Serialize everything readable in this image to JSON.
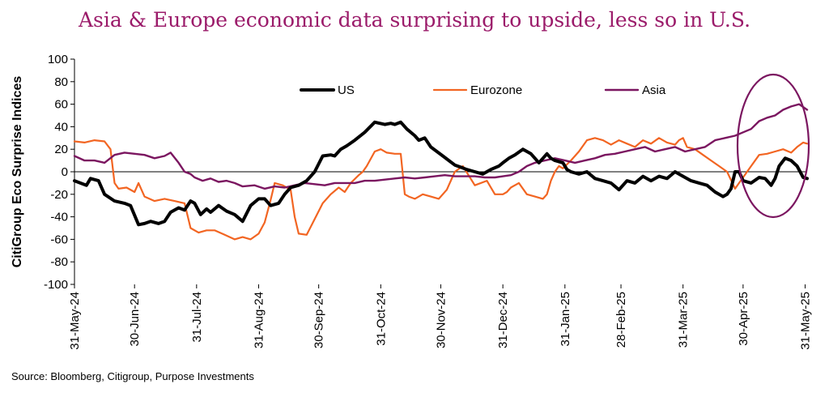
{
  "chart_data": {
    "type": "line",
    "title": "Asia & Europe economic data surprising to upside, less so in U.S.",
    "xlabel": "",
    "ylabel": "CitiGroup Eco Surprise Indices",
    "ylim": [
      -100,
      100
    ],
    "yticks": [
      -100,
      -80,
      -60,
      -40,
      -20,
      0,
      20,
      40,
      60,
      80,
      100
    ],
    "xlim": [
      0,
      366
    ],
    "xtick_labels": [
      "31-May-24",
      "30-Jun-24",
      "31-Jul-24",
      "31-Aug-24",
      "30-Sep-24",
      "31-Oct-24",
      "30-Nov-24",
      "31-Dec-24",
      "31-Jan-25",
      "28-Feb-25",
      "31-Mar-25",
      "30-Apr-25",
      "31-May-25"
    ],
    "xtick_positions": [
      0,
      30,
      61,
      92,
      122,
      153,
      183,
      214,
      245,
      273,
      304,
      334,
      365
    ],
    "series": [
      {
        "name": "US",
        "color": "#000000",
        "x": [
          0,
          6,
          8,
          12,
          15,
          20,
          25,
          28,
          32,
          35,
          38,
          42,
          45,
          48,
          52,
          55,
          58,
          60,
          63,
          66,
          68,
          72,
          76,
          80,
          84,
          88,
          92,
          95,
          98,
          102,
          105,
          108,
          112,
          116,
          120,
          124,
          128,
          130,
          133,
          136,
          140,
          145,
          150,
          155,
          158,
          160,
          163,
          166,
          170,
          172,
          175,
          178,
          181,
          184,
          187,
          190,
          193,
          196,
          200,
          204,
          208,
          212,
          214,
          217,
          220,
          224,
          228,
          232,
          236,
          238,
          240,
          244,
          246,
          248,
          252,
          256,
          260,
          264,
          268,
          272,
          276,
          280,
          284,
          288,
          292,
          296,
          300,
          304,
          308,
          312,
          316,
          320,
          324,
          326,
          328,
          330,
          332,
          334,
          338,
          342,
          345,
          348,
          350,
          352,
          355,
          358,
          361,
          364,
          366
        ],
        "y": [
          -8,
          -12,
          -6,
          -8,
          -20,
          -26,
          -28,
          -30,
          -47,
          -46,
          -44,
          -46,
          -44,
          -36,
          -32,
          -34,
          -26,
          -28,
          -38,
          -33,
          -36,
          -30,
          -35,
          -38,
          -44,
          -30,
          -24,
          -24,
          -30,
          -28,
          -20,
          -14,
          -12,
          -8,
          0,
          14,
          15,
          14,
          20,
          23,
          28,
          35,
          44,
          42,
          43,
          42,
          44,
          38,
          32,
          28,
          30,
          22,
          18,
          14,
          10,
          6,
          4,
          2,
          0,
          -2,
          2,
          5,
          8,
          12,
          15,
          20,
          16,
          8,
          16,
          12,
          10,
          8,
          2,
          0,
          -2,
          0,
          -6,
          -8,
          -10,
          -16,
          -8,
          -10,
          -4,
          -8,
          -4,
          -6,
          0,
          -4,
          -8,
          -10,
          -12,
          -18,
          -22,
          -20,
          -15,
          0,
          0,
          -8,
          -10,
          -5,
          -6,
          -12,
          -6,
          5,
          12,
          10,
          5,
          -5,
          -6
        ]
      },
      {
        "name": "Eurozone",
        "color": "#F26522",
        "x": [
          0,
          5,
          10,
          15,
          18,
          20,
          22,
          26,
          30,
          32,
          35,
          40,
          45,
          50,
          55,
          58,
          62,
          66,
          70,
          75,
          80,
          84,
          88,
          92,
          95,
          98,
          100,
          104,
          108,
          110,
          112,
          116,
          120,
          124,
          128,
          132,
          135,
          138,
          142,
          144,
          146,
          150,
          153,
          156,
          160,
          163,
          165,
          167,
          170,
          174,
          178,
          182,
          186,
          190,
          194,
          200,
          206,
          210,
          214,
          216,
          218,
          222,
          226,
          230,
          234,
          236,
          238,
          240,
          242,
          244,
          248,
          252,
          256,
          260,
          264,
          268,
          272,
          276,
          280,
          284,
          288,
          292,
          296,
          300,
          302,
          304,
          306,
          310,
          314,
          318,
          322,
          326,
          330,
          332,
          334,
          336,
          338,
          342,
          346,
          350,
          354,
          358,
          361,
          364,
          366
        ],
        "y": [
          27,
          26,
          28,
          27,
          20,
          -10,
          -15,
          -14,
          -18,
          -10,
          -22,
          -26,
          -24,
          -26,
          -28,
          -50,
          -54,
          -52,
          -52,
          -56,
          -60,
          -58,
          -60,
          -55,
          -45,
          -25,
          -10,
          -12,
          -16,
          -40,
          -55,
          -56,
          -42,
          -28,
          -20,
          -14,
          -18,
          -10,
          -3,
          0,
          5,
          18,
          20,
          17,
          16,
          16,
          -20,
          -22,
          -24,
          -20,
          -22,
          -24,
          -16,
          0,
          5,
          -12,
          -8,
          -20,
          -20,
          -18,
          -14,
          -10,
          -20,
          -22,
          -24,
          -20,
          -8,
          0,
          5,
          3,
          10,
          18,
          28,
          30,
          28,
          24,
          28,
          25,
          22,
          28,
          25,
          30,
          26,
          24,
          28,
          30,
          22,
          20,
          15,
          10,
          5,
          0,
          -15,
          -10,
          -5,
          0,
          5,
          15,
          16,
          18,
          20,
          17,
          22,
          26,
          25
        ]
      },
      {
        "name": "Asia",
        "color": "#7B1660",
        "x": [
          0,
          5,
          10,
          15,
          20,
          25,
          30,
          35,
          40,
          45,
          48,
          52,
          55,
          58,
          60,
          64,
          68,
          72,
          76,
          80,
          84,
          90,
          95,
          100,
          105,
          110,
          115,
          120,
          125,
          130,
          135,
          140,
          145,
          150,
          155,
          160,
          165,
          170,
          175,
          180,
          185,
          190,
          195,
          200,
          205,
          210,
          214,
          218,
          222,
          226,
          230,
          235,
          240,
          245,
          250,
          255,
          260,
          265,
          270,
          275,
          280,
          285,
          290,
          295,
          300,
          305,
          310,
          315,
          320,
          325,
          330,
          334,
          338,
          342,
          346,
          350,
          354,
          358,
          362,
          366
        ],
        "y": [
          14,
          10,
          10,
          8,
          15,
          17,
          16,
          15,
          12,
          14,
          17,
          8,
          0,
          -2,
          -5,
          -8,
          -6,
          -9,
          -8,
          -10,
          -13,
          -12,
          -15,
          -13,
          -14,
          -12,
          -10,
          -11,
          -12,
          -10,
          -10,
          -10,
          -8,
          -8,
          -7,
          -6,
          -5,
          -6,
          -5,
          -4,
          -3,
          -4,
          -4,
          -4,
          -5,
          -5,
          -4,
          -3,
          0,
          5,
          8,
          10,
          12,
          10,
          8,
          10,
          12,
          15,
          16,
          18,
          20,
          22,
          18,
          20,
          22,
          18,
          20,
          22,
          28,
          30,
          32,
          35,
          38,
          45,
          48,
          50,
          55,
          58,
          60,
          55
        ]
      }
    ],
    "legend": [
      "US",
      "Eurozone",
      "Asia"
    ],
    "highlight": "ellipse around May-25 data"
  },
  "source_text": "Source: Bloomberg, Citigroup, Purpose Investments"
}
